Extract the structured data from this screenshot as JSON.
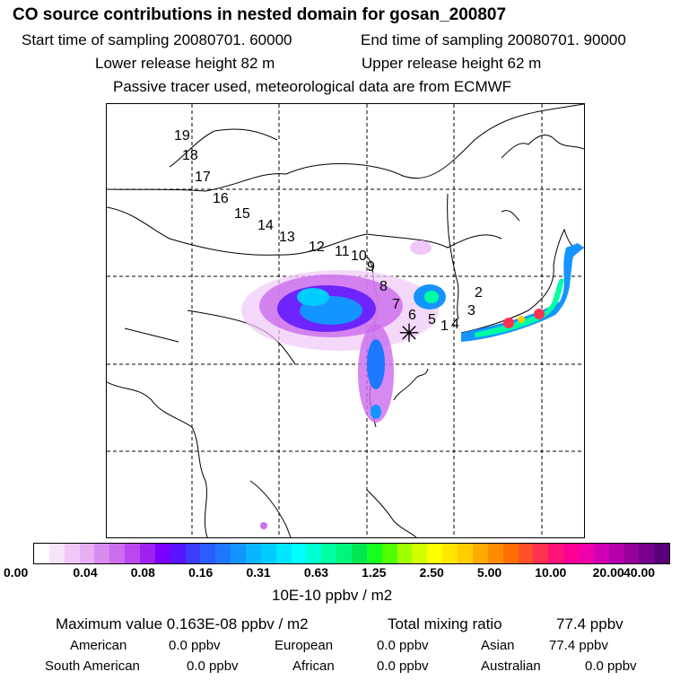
{
  "header": {
    "title": "CO  source contributions in nested domain for gosan_200807",
    "start_label": "Start time of sampling 20080701. 60000",
    "end_label": "End time of sampling 20080701. 90000",
    "lower_height": "Lower release height   82 m",
    "upper_height": "Upper release height   62 m",
    "tracer_note": "Passive tracer used, meteorological data are from ECMWF"
  },
  "map": {
    "receptor_marker": "✳",
    "trajectory_labels": [
      "1",
      "2",
      "3",
      "4",
      "5",
      "6",
      "7",
      "8",
      "9",
      "10",
      "11",
      "12",
      "13",
      "14",
      "15",
      "16",
      "17",
      "18",
      "19"
    ]
  },
  "colorbar": {
    "tick_labels": [
      "0.00",
      "0.04",
      "0.08",
      "0.16",
      "0.31",
      "0.63",
      "1.25",
      "2.50",
      "5.00",
      "10.00",
      "20.00",
      "40.00"
    ],
    "unit": "10E-10 ppbv / m2",
    "colors": [
      "#ffffff",
      "#f7e3fb",
      "#efc8f7",
      "#e6aef3",
      "#d98cf0",
      "#cc6cee",
      "#bb48ee",
      "#a020f0",
      "#7a00ff",
      "#5a14ff",
      "#3c3cff",
      "#2a5cff",
      "#1e78ff",
      "#1494ff",
      "#0ab4ff",
      "#00cdff",
      "#00e6ff",
      "#00ffff",
      "#00ffd2",
      "#00ffa0",
      "#00f57a",
      "#00e650",
      "#14ff1e",
      "#50ff00",
      "#a0ff00",
      "#d2ff00",
      "#ffff00",
      "#ffe600",
      "#ffcd00",
      "#ffaa00",
      "#ff8c00",
      "#ff6e00",
      "#ff5028",
      "#ff3250",
      "#ff1478",
      "#ff0096",
      "#f000aa",
      "#d200b4",
      "#b400aa",
      "#96009b",
      "#78008c",
      "#5a0078"
    ]
  },
  "summary": {
    "max_label": "Maximum value  0.163E-08 ppbv / m2",
    "total_label": "Total mixing ratio",
    "total_value": "77.4 ppbv",
    "regions": [
      {
        "name": "American",
        "value": "0.0 ppbv"
      },
      {
        "name": "European",
        "value": "0.0 ppbv"
      },
      {
        "name": "Asian",
        "value": "77.4 ppbv"
      },
      {
        "name": "South American",
        "value": "0.0 ppbv"
      },
      {
        "name": "African",
        "value": "0.0 ppbv"
      },
      {
        "name": "Australian",
        "value": "0.0 ppbv"
      }
    ]
  }
}
